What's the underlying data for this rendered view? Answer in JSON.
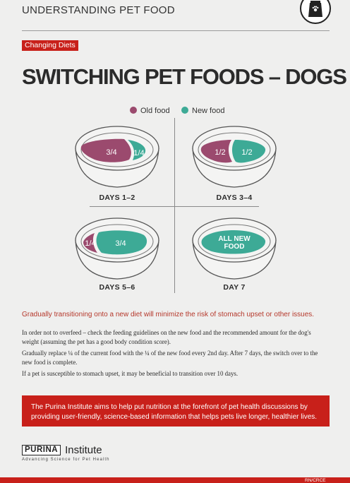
{
  "header": {
    "title": "UNDERSTANDING PET FOOD",
    "icon": "pet-food-bag-icon"
  },
  "category_tag": "Changing Diets",
  "title": "SWITCHING PET FOODS – DOGS",
  "legend": {
    "old": {
      "label": "Old food",
      "color": "#9b4a6e"
    },
    "new": {
      "label": "New food",
      "color": "#3daa96"
    }
  },
  "bowls": [
    {
      "old_label": "3/4",
      "new_label": "1/4",
      "new_fraction": 0.25,
      "caption": "DAYS 1–2"
    },
    {
      "old_label": "1/2",
      "new_label": "1/2",
      "new_fraction": 0.5,
      "caption": "DAYS 3–4"
    },
    {
      "old_label": "1/4",
      "new_label": "3/4",
      "new_fraction": 0.75,
      "caption": "DAYS 5–6"
    },
    {
      "old_label": "",
      "new_label": "ALL NEW FOOD",
      "new_label_lines": [
        "ALL NEW",
        "FOOD"
      ],
      "new_fraction": 1.0,
      "caption": "DAY 7"
    }
  ],
  "intro": "Gradually transitioning onto a new diet will minimize the risk of stomach upset or other issues.",
  "paragraphs": [
    "In order not to overfeed – check the feeding guidelines on the new food and the recommended amount for the dog's weight (assuming the pet has a good body condition score).",
    "Gradually replace ¼ of the current food with the ¼ of the new food every 2nd day. After 7 days, the switch over to the new food is complete.",
    "If a pet is susceptible to stomach upset, it may be beneficial to transition over 10 days."
  ],
  "banner": "The Purina Institute aims to help put nutrition at the forefront of pet health discussions by providing user-friendly, science-based information that helps pets live longer, healthier lives.",
  "brand": {
    "purina": "PURINA",
    "institute": "Institute",
    "tagline": "Advancing Science for Pet Health"
  },
  "doc_code": "RN/CRCE"
}
